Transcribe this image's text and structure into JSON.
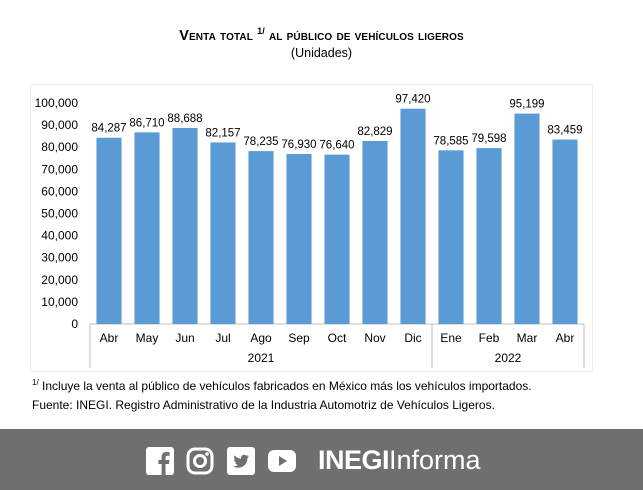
{
  "chart_title": {
    "main": "Venta total",
    "superscript": "1/",
    "rest": "al público de vehículos ligeros"
  },
  "subtitle": "(Unidades)",
  "colors": {
    "bar": "#5b9bd5",
    "gridline": "#d9d9d9",
    "footer_bg": "#6f6f6f",
    "footer_fg": "#ffffff"
  },
  "chart_data": {
    "type": "bar",
    "categories": [
      "Abr",
      "May",
      "Jun",
      "Jul",
      "Ago",
      "Sep",
      "Oct",
      "Nov",
      "Dic",
      "Ene",
      "Feb",
      "Mar",
      "Abr"
    ],
    "values": [
      84287,
      86710,
      88688,
      82157,
      78235,
      76930,
      76640,
      82829,
      97420,
      78585,
      79598,
      95199,
      83459
    ],
    "data_labels": [
      "84,287",
      "86,710",
      "88,688",
      "82,157",
      "78,235",
      "76,930",
      "76,640",
      "82,829",
      "97,420",
      "78,585",
      "79,598",
      "95,199",
      "83,459"
    ],
    "year_groups": [
      {
        "label": "2021",
        "count": 9
      },
      {
        "label": "2022",
        "count": 4
      }
    ],
    "y_ticks": [
      "0",
      "10,000",
      "20,000",
      "30,000",
      "40,000",
      "50,000",
      "60,000",
      "70,000",
      "80,000",
      "90,000",
      "100,000"
    ],
    "ylim": [
      0,
      100000
    ],
    "grid": true,
    "legend": "none"
  },
  "footnote": {
    "marker": "1/",
    "text": "Incluye la venta al público de vehículos fabricados en México más los vehículos importados."
  },
  "source": "Fuente: INEGI. Registro Administrativo de la Industria Automotriz de Vehículos Ligeros.",
  "footer": {
    "social_icons": [
      "facebook-icon",
      "instagram-icon",
      "twitter-icon",
      "youtube-icon"
    ],
    "brand_strong": "INEGI",
    "brand_light": "Informa"
  }
}
